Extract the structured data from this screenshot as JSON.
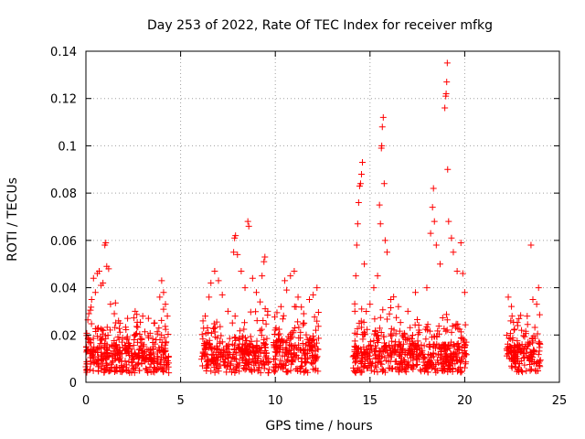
{
  "chart_data": {
    "type": "scatter",
    "title": "Day 253 of 2022, Rate Of TEC Index for receiver mfkg",
    "xlabel": "GPS time / hours",
    "ylabel": "ROTI / TECUs",
    "xlim": [
      0,
      25
    ],
    "ylim": [
      0,
      0.14
    ],
    "x_ticks": [
      "0",
      "5",
      "10",
      "15",
      "20",
      "25"
    ],
    "y_ticks": [
      "0",
      "0.02",
      "0.04",
      "0.06",
      "0.08",
      "0.1",
      "0.12",
      "0.14"
    ],
    "grid": true,
    "marker": "plus",
    "color": "#ff0000",
    "data_segments": [
      {
        "start": 0.0,
        "end": 4.4
      },
      {
        "start": 6.1,
        "end": 9.7
      },
      {
        "start": 9.9,
        "end": 12.3
      },
      {
        "start": 14.1,
        "end": 20.1
      },
      {
        "start": 22.2,
        "end": 24.0
      }
    ],
    "series": [
      {
        "name": "ROTI",
        "points": [
          [
            0.05,
            0.005
          ],
          [
            0.15,
            0.029
          ],
          [
            0.2,
            0.018
          ],
          [
            0.3,
            0.035
          ],
          [
            0.4,
            0.044
          ],
          [
            0.5,
            0.038
          ],
          [
            0.6,
            0.046
          ],
          [
            0.7,
            0.047
          ],
          [
            0.8,
            0.041
          ],
          [
            0.9,
            0.042
          ],
          [
            1.0,
            0.058
          ],
          [
            1.05,
            0.059
          ],
          [
            1.1,
            0.049
          ],
          [
            1.2,
            0.048
          ],
          [
            1.3,
            0.033
          ],
          [
            1.5,
            0.029
          ],
          [
            1.8,
            0.025
          ],
          [
            2.2,
            0.027
          ],
          [
            2.6,
            0.03
          ],
          [
            3.0,
            0.028
          ],
          [
            3.3,
            0.027
          ],
          [
            3.6,
            0.025
          ],
          [
            3.9,
            0.036
          ],
          [
            4.0,
            0.043
          ],
          [
            4.1,
            0.038
          ],
          [
            4.2,
            0.033
          ],
          [
            4.3,
            0.028
          ],
          [
            6.3,
            0.028
          ],
          [
            6.5,
            0.036
          ],
          [
            6.6,
            0.042
          ],
          [
            6.8,
            0.047
          ],
          [
            7.0,
            0.043
          ],
          [
            7.2,
            0.037
          ],
          [
            7.5,
            0.03
          ],
          [
            7.8,
            0.055
          ],
          [
            7.85,
            0.061
          ],
          [
            7.9,
            0.062
          ],
          [
            8.0,
            0.054
          ],
          [
            8.2,
            0.047
          ],
          [
            8.4,
            0.04
          ],
          [
            8.55,
            0.068
          ],
          [
            8.6,
            0.066
          ],
          [
            8.8,
            0.044
          ],
          [
            9.0,
            0.038
          ],
          [
            9.2,
            0.034
          ],
          [
            9.3,
            0.045
          ],
          [
            9.4,
            0.051
          ],
          [
            9.45,
            0.053
          ],
          [
            9.6,
            0.03
          ],
          [
            10.0,
            0.01
          ],
          [
            10.3,
            0.032
          ],
          [
            10.5,
            0.043
          ],
          [
            10.6,
            0.039
          ],
          [
            10.8,
            0.045
          ],
          [
            11.0,
            0.047
          ],
          [
            11.2,
            0.036
          ],
          [
            11.5,
            0.029
          ],
          [
            11.8,
            0.035
          ],
          [
            12.0,
            0.037
          ],
          [
            12.2,
            0.04
          ],
          [
            14.2,
            0.03
          ],
          [
            14.25,
            0.045
          ],
          [
            14.3,
            0.058
          ],
          [
            14.35,
            0.067
          ],
          [
            14.4,
            0.076
          ],
          [
            14.45,
            0.083
          ],
          [
            14.5,
            0.084
          ],
          [
            14.55,
            0.088
          ],
          [
            14.6,
            0.093
          ],
          [
            14.7,
            0.05
          ],
          [
            15.0,
            0.033
          ],
          [
            15.2,
            0.04
          ],
          [
            15.4,
            0.045
          ],
          [
            15.5,
            0.075
          ],
          [
            15.55,
            0.067
          ],
          [
            15.6,
            0.099
          ],
          [
            15.62,
            0.1
          ],
          [
            15.65,
            0.108
          ],
          [
            15.7,
            0.112
          ],
          [
            15.75,
            0.084
          ],
          [
            15.8,
            0.06
          ],
          [
            15.9,
            0.055
          ],
          [
            16.1,
            0.035
          ],
          [
            16.5,
            0.032
          ],
          [
            17.0,
            0.03
          ],
          [
            17.4,
            0.038
          ],
          [
            18.0,
            0.04
          ],
          [
            18.2,
            0.063
          ],
          [
            18.3,
            0.074
          ],
          [
            18.35,
            0.082
          ],
          [
            18.4,
            0.068
          ],
          [
            18.5,
            0.058
          ],
          [
            18.7,
            0.05
          ],
          [
            18.95,
            0.116
          ],
          [
            19.0,
            0.121
          ],
          [
            19.02,
            0.122
          ],
          [
            19.05,
            0.127
          ],
          [
            19.08,
            0.135
          ],
          [
            19.1,
            0.09
          ],
          [
            19.15,
            0.068
          ],
          [
            19.3,
            0.061
          ],
          [
            19.4,
            0.055
          ],
          [
            19.6,
            0.047
          ],
          [
            19.8,
            0.059
          ],
          [
            19.9,
            0.046
          ],
          [
            20.0,
            0.038
          ],
          [
            22.3,
            0.036
          ],
          [
            22.5,
            0.028
          ],
          [
            22.8,
            0.024
          ],
          [
            23.0,
            0.022
          ],
          [
            23.3,
            0.028
          ],
          [
            23.5,
            0.058
          ],
          [
            23.6,
            0.035
          ],
          [
            23.8,
            0.033
          ],
          [
            23.9,
            0.04
          ]
        ]
      }
    ]
  }
}
